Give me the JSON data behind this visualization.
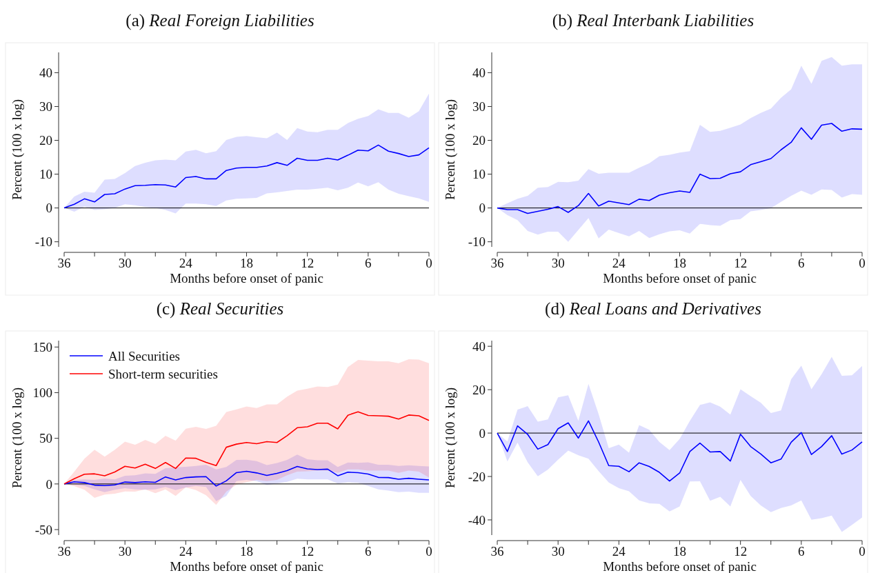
{
  "chart_data": [
    {
      "type": "line",
      "title": "(a) Real Foreign Liabilities",
      "xlabel": "Months before onset of panic",
      "ylabel": "Percent (100 x log)",
      "x": [
        36,
        35,
        34,
        33,
        32,
        31,
        30,
        29,
        28,
        27,
        26,
        25,
        24,
        23,
        22,
        21,
        20,
        19,
        18,
        17,
        16,
        15,
        14,
        13,
        12,
        11,
        10,
        9,
        8,
        7,
        6,
        5,
        4,
        3,
        2,
        1,
        0
      ],
      "xlim": [
        36,
        0
      ],
      "xticks": [
        36,
        {
          "value": 33,
          "label": null
        },
        30,
        {
          "value": 27,
          "label": null
        },
        24,
        {
          "value": 21,
          "label": null
        },
        18,
        {
          "value": 15,
          "label": null
        },
        12,
        {
          "value": 9,
          "label": null
        },
        6,
        {
          "value": 3,
          "label": null
        },
        0
      ],
      "ylim": [
        -11.5,
        46
      ],
      "yticks": [
        -10,
        0,
        10,
        20,
        30,
        40
      ],
      "ref_lines": [
        {
          "axis": "y",
          "value": 0,
          "color": "#000000"
        }
      ],
      "series": [
        {
          "color": "#0000ff",
          "values": [
            0,
            1.1,
            2.7,
            1.8,
            4.0,
            4.2,
            5.6,
            6.6,
            6.7,
            6.9,
            6.8,
            6.2,
            9.0,
            9.3,
            8.6,
            8.6,
            11.1,
            11.8,
            12.0,
            12.0,
            12.4,
            13.4,
            12.6,
            14.7,
            14.1,
            14.1,
            14.7,
            14.2,
            15.6,
            17.1,
            16.9,
            18.6,
            16.8,
            16.1,
            15.2,
            15.7,
            17.8
          ],
          "upper": [
            0,
            3.4,
            4.8,
            4.5,
            8.4,
            8.6,
            10.3,
            12.4,
            13.4,
            14.1,
            14.3,
            14.1,
            16.7,
            17.2,
            16.2,
            16.8,
            20.1,
            21.0,
            21.3,
            20.9,
            20.6,
            22.3,
            20.1,
            23.6,
            22.6,
            22.4,
            23.1,
            23.1,
            25.1,
            26.4,
            27.2,
            29.2,
            28.1,
            28.1,
            26.7,
            28.6,
            33.8
          ],
          "lower": [
            0,
            -1.1,
            0.4,
            -0.6,
            -0.4,
            0,
            1.1,
            0.8,
            0.3,
            0,
            -0.6,
            -1.6,
            1.3,
            1.3,
            1.1,
            0.6,
            2.2,
            2.7,
            2.8,
            3.0,
            4.3,
            4.6,
            5.0,
            5.4,
            5.4,
            5.7,
            6.0,
            5.2,
            6.0,
            7.5,
            6.4,
            7.6,
            5.4,
            4.2,
            3.5,
            2.8,
            1.8
          ]
        }
      ]
    },
    {
      "type": "line",
      "title": "(b) Real Interbank Liabilities",
      "xlabel": "Months before onset of panic",
      "ylabel": "Percent (100 x log)",
      "x": [
        36,
        35,
        34,
        33,
        32,
        31,
        30,
        29,
        28,
        27,
        26,
        25,
        24,
        23,
        22,
        21,
        20,
        19,
        18,
        17,
        16,
        15,
        14,
        13,
        12,
        11,
        10,
        9,
        8,
        7,
        6,
        5,
        4,
        3,
        2,
        1,
        0
      ],
      "xlim": [
        36,
        0
      ],
      "xticks": [
        36,
        {
          "value": 33,
          "label": null
        },
        30,
        {
          "value": 27,
          "label": null
        },
        24,
        {
          "value": 21,
          "label": null
        },
        18,
        {
          "value": 15,
          "label": null
        },
        12,
        {
          "value": 9,
          "label": null
        },
        6,
        {
          "value": 3,
          "label": null
        },
        0
      ],
      "ylim": [
        -11.5,
        46
      ],
      "yticks": [
        -10,
        0,
        10,
        20,
        30,
        40
      ],
      "ref_lines": [
        {
          "axis": "y",
          "value": 0,
          "color": "#000000"
        }
      ],
      "series": [
        {
          "color": "#0000ff",
          "values": [
            0,
            -0.5,
            -0.5,
            -1.6,
            -1.0,
            -0.4,
            0.4,
            -1.3,
            0.7,
            4.3,
            0.6,
            2.0,
            1.5,
            1.0,
            2.6,
            2.2,
            3.8,
            4.5,
            5.0,
            4.6,
            10.0,
            8.7,
            8.8,
            10.1,
            10.7,
            12.8,
            13.7,
            14.6,
            17.2,
            19.4,
            23.7,
            20.3,
            24.5,
            25.0,
            22.7,
            23.4,
            23.3
          ],
          "upper": [
            0,
            1.4,
            2.7,
            3.6,
            6.0,
            6.2,
            7.7,
            7.6,
            8.1,
            11.5,
            10.1,
            10.4,
            10.4,
            10.4,
            11.9,
            13.2,
            15.3,
            15.7,
            16.4,
            16.8,
            24.6,
            22.5,
            22.8,
            23.7,
            24.7,
            26.6,
            28.1,
            29.4,
            32.6,
            35.1,
            42.1,
            36.7,
            43.5,
            44.6,
            42.1,
            42.5,
            42.5
          ],
          "lower": [
            0,
            -2.1,
            -3.6,
            -6.8,
            -7.9,
            -7.0,
            -7.0,
            -10.0,
            -6.5,
            -3.0,
            -9.0,
            -6.4,
            -7.4,
            -8.4,
            -6.8,
            -8.9,
            -7.8,
            -6.9,
            -6.6,
            -7.6,
            -4.7,
            -5.1,
            -5.3,
            -3.6,
            -3.3,
            -1.0,
            -0.6,
            -0.1,
            1.8,
            3.6,
            5.1,
            3.9,
            5.5,
            5.3,
            3.1,
            4.1,
            3.9
          ]
        }
      ]
    },
    {
      "type": "line",
      "title": "(c) Real Securities",
      "xlabel": "Months before onset of panic",
      "ylabel": "Percent (100 x log)",
      "legend": "top left",
      "x": [
        36,
        35,
        34,
        33,
        32,
        31,
        30,
        29,
        28,
        27,
        26,
        25,
        24,
        23,
        22,
        21,
        20,
        19,
        18,
        17,
        16,
        15,
        14,
        13,
        12,
        11,
        10,
        9,
        8,
        7,
        6,
        5,
        4,
        3,
        2,
        1,
        0
      ],
      "xlim": [
        36,
        0
      ],
      "xticks": [
        36,
        {
          "value": 33,
          "label": null
        },
        30,
        {
          "value": 27,
          "label": null
        },
        24,
        {
          "value": 21,
          "label": null
        },
        18,
        {
          "value": 15,
          "label": null
        },
        12,
        {
          "value": 9,
          "label": null
        },
        6,
        {
          "value": 3,
          "label": null
        },
        0
      ],
      "ylim": [
        -56,
        157
      ],
      "yticks": [
        -50,
        0,
        50,
        100,
        150
      ],
      "ref_lines": [
        {
          "axis": "y",
          "value": 0,
          "color": "#000000"
        }
      ],
      "series": [
        {
          "name": "All Securities",
          "color": "#0000ff",
          "values": [
            0,
            2.3,
            1.5,
            -1.3,
            -1.8,
            -1.0,
            2.1,
            1.5,
            2.3,
            1.8,
            7.7,
            4.4,
            7.0,
            7.7,
            8.0,
            -2.3,
            3.4,
            12.4,
            13.9,
            12.1,
            9.3,
            11.6,
            14.7,
            19.1,
            16.5,
            15.7,
            16.2,
            9.0,
            12.9,
            12.4,
            10.8,
            7.2,
            7.0,
            5.2,
            6.2,
            5.2,
            4.4
          ],
          "upper": [
            0,
            4.4,
            4.9,
            4.4,
            5.9,
            4.9,
            9.0,
            9.5,
            11.6,
            11.1,
            17.3,
            18.3,
            18.8,
            19.8,
            21.1,
            16.0,
            18.6,
            26.3,
            26.5,
            25.0,
            20.6,
            22.9,
            26.3,
            32.2,
            27.1,
            26.0,
            26.0,
            18.6,
            23.5,
            23.2,
            23.7,
            21.1,
            21.1,
            19.8,
            20.4,
            19.8,
            19.1
          ],
          "lower": [
            0,
            -0.8,
            -2.1,
            -5.9,
            -9.0,
            -6.4,
            -4.6,
            -5.9,
            -6.4,
            -5.9,
            -3.4,
            -6.7,
            -3.9,
            -2.1,
            -3.4,
            -18.8,
            -13.1,
            3.1,
            4.4,
            3.1,
            -1.3,
            0.5,
            2.3,
            5.7,
            4.9,
            4.9,
            4.9,
            0.5,
            1.8,
            1.3,
            -2.1,
            -5.9,
            -7.2,
            -9.0,
            -8.5,
            -9.8,
            -9.8
          ]
        },
        {
          "name": "Short-term securities",
          "color": "#ff0000",
          "values": [
            0,
            5.7,
            10.6,
            11.1,
            9.0,
            13.1,
            19.3,
            17.5,
            21.6,
            17.0,
            23.5,
            17.0,
            28.4,
            28.1,
            23.7,
            20.1,
            40.2,
            43.6,
            45.4,
            44.1,
            46.4,
            45.4,
            52.8,
            61.6,
            62.6,
            66.5,
            66.5,
            60.3,
            75.3,
            79.1,
            75.0,
            74.7,
            74.2,
            71.1,
            75.5,
            74.7,
            69.6
          ],
          "upper": [
            0,
            13.4,
            27.6,
            37.4,
            29.9,
            37.4,
            46.4,
            43.0,
            48.2,
            43.8,
            52.8,
            47.4,
            60.6,
            62.6,
            60.3,
            63.7,
            78.9,
            81.7,
            84.8,
            83.2,
            87.1,
            87.1,
            95.6,
            102.3,
            104.4,
            106.7,
            106.2,
            108.8,
            128.1,
            135.8,
            135.1,
            134.3,
            134.3,
            132.2,
            136.6,
            136.3,
            132.2
          ],
          "lower": [
            0,
            -2.3,
            -6.4,
            -15.2,
            -11.6,
            -10.6,
            -8.2,
            -8.5,
            -5.9,
            -10.1,
            -5.9,
            -13.1,
            -3.6,
            -6.7,
            -12.4,
            -23.0,
            -8.5,
            -0.8,
            1.8,
            4.4,
            3.1,
            4.4,
            9.5,
            13.4,
            13.9,
            14.7,
            14.7,
            12.1,
            16.0,
            16.0,
            14.7,
            14.7,
            14.7,
            12.1,
            14.7,
            13.4,
            7.0
          ]
        }
      ]
    },
    {
      "type": "line",
      "title": "(d) Real Loans and Derivatives",
      "xlabel": "Months before onset of panic",
      "ylabel": "Percent (100 x log)",
      "x": [
        36,
        35,
        34,
        33,
        32,
        31,
        30,
        29,
        28,
        27,
        26,
        25,
        24,
        23,
        22,
        21,
        20,
        19,
        18,
        17,
        16,
        15,
        14,
        13,
        12,
        11,
        10,
        9,
        8,
        7,
        6,
        5,
        4,
        3,
        2,
        1,
        0
      ],
      "xlim": [
        36,
        0
      ],
      "xticks": [
        36,
        {
          "value": 33,
          "label": null
        },
        30,
        {
          "value": 27,
          "label": null
        },
        24,
        {
          "value": 21,
          "label": null
        },
        18,
        {
          "value": 15,
          "label": null
        },
        12,
        {
          "value": 9,
          "label": null
        },
        6,
        {
          "value": 3,
          "label": null
        },
        0
      ],
      "ylim": [
        -47,
        42.6
      ],
      "yticks": [
        -40,
        -20,
        0,
        20,
        40
      ],
      "ref_lines": [
        {
          "axis": "y",
          "value": 0,
          "color": "#000000"
        }
      ],
      "series": [
        {
          "color": "#0000ff",
          "values": [
            0,
            -8.5,
            3.3,
            -0.6,
            -7.4,
            -5.3,
            2.0,
            4.7,
            -2.3,
            5.6,
            -4.1,
            -15.0,
            -15.3,
            -17.8,
            -13.7,
            -15.4,
            -18.1,
            -22.1,
            -18.4,
            -8.5,
            -4.6,
            -8.7,
            -8.5,
            -12.9,
            -0.5,
            -6.2,
            -9.6,
            -13.7,
            -12.0,
            -4.2,
            0.2,
            -9.9,
            -6.2,
            -1.2,
            -9.7,
            -7.8,
            -4.1
          ],
          "upper": [
            0,
            -3.9,
            10.8,
            12.4,
            5.3,
            6.3,
            16.5,
            17.4,
            5.7,
            22.7,
            8.8,
            -7.0,
            -5.3,
            -9.0,
            3.7,
            1.5,
            -4.1,
            -7.8,
            -2.7,
            5.6,
            13.0,
            14.2,
            12.2,
            8.5,
            20.2,
            17.0,
            14.0,
            9.2,
            10.4,
            24.8,
            31.1,
            20.2,
            27.1,
            35.1,
            26.4,
            26.6,
            30.9
          ],
          "lower": [
            0,
            -13.1,
            -4.4,
            -13.5,
            -19.9,
            -16.8,
            -12.3,
            -8.1,
            -10.2,
            -11.8,
            -17.5,
            -22.8,
            -25.4,
            -26.8,
            -31.0,
            -32.4,
            -32.6,
            -36.1,
            -33.8,
            -22.3,
            -22.2,
            -31.2,
            -29.4,
            -33.8,
            -21.6,
            -29.0,
            -33.3,
            -36.4,
            -34.5,
            -33.3,
            -31.0,
            -39.9,
            -39.2,
            -38.0,
            -45.6,
            -42.3,
            -38.9
          ]
        }
      ]
    }
  ]
}
